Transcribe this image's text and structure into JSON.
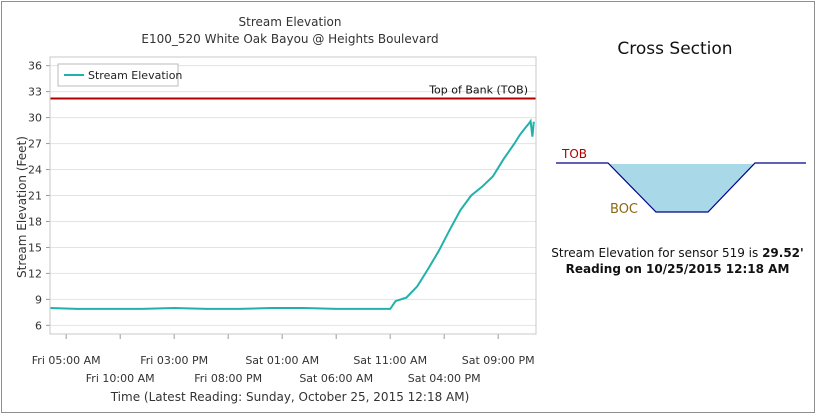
{
  "chart_data": {
    "type": "line",
    "title": "Stream Elevation",
    "subtitle": "E100_520 White Oak Bayou @ Heights Boulevard",
    "ylabel": "Stream Elevation (Feet)",
    "xlabel": "Time (Latest Reading: Sunday, October 25, 2015 12:18 AM)",
    "ylim": [
      5,
      37
    ],
    "yticks": [
      6,
      9,
      12,
      15,
      18,
      21,
      24,
      27,
      30,
      33,
      36
    ],
    "xlim": [
      "2015-10-23T03:30",
      "2015-10-25T00:30"
    ],
    "xtick_labels_top": [
      "Fri 05:00 AM",
      "Fri 03:00 PM",
      "Sat 01:00 AM",
      "Sat 11:00 AM",
      "Sat 09:00 PM"
    ],
    "xtick_labels_bottom": [
      "Fri 10:00 AM",
      "Fri 08:00 PM",
      "Sat 06:00 AM",
      "Sat 04:00 PM"
    ],
    "grid": true,
    "legend": "top-left",
    "series": [
      {
        "name": "Stream Elevation",
        "color": "#20b2aa",
        "x": [
          "2015-10-23T03:30",
          "2015-10-23T06:00",
          "2015-10-23T09:00",
          "2015-10-23T12:00",
          "2015-10-23T15:00",
          "2015-10-23T18:00",
          "2015-10-23T21:00",
          "2015-10-24T00:00",
          "2015-10-24T03:00",
          "2015-10-24T06:00",
          "2015-10-24T08:00",
          "2015-10-24T09:00",
          "2015-10-24T11:00",
          "2015-10-24T11:30",
          "2015-10-24T12:30",
          "2015-10-24T13:30",
          "2015-10-24T14:30",
          "2015-10-24T15:30",
          "2015-10-24T16:30",
          "2015-10-24T17:30",
          "2015-10-24T18:30",
          "2015-10-24T19:30",
          "2015-10-24T20:30",
          "2015-10-24T21:00",
          "2015-10-24T21:30",
          "2015-10-24T22:30",
          "2015-10-24T23:00",
          "2015-10-24T23:30",
          "2015-10-24T23:50",
          "2015-10-25T00:00",
          "2015-10-25T00:10",
          "2015-10-25T00:18"
        ],
        "values": [
          8.0,
          7.9,
          7.9,
          7.9,
          8.0,
          7.9,
          7.9,
          8.0,
          8.0,
          7.9,
          7.9,
          7.9,
          7.9,
          8.8,
          9.2,
          10.5,
          12.5,
          14.6,
          17.0,
          19.3,
          21.0,
          22.0,
          23.2,
          24.2,
          25.2,
          27.0,
          28.0,
          28.8,
          29.3,
          29.6,
          27.8,
          29.52
        ]
      }
    ],
    "reference_lines": [
      {
        "label": "Top of Bank (TOB)",
        "y": 32.2,
        "color": "#b00000"
      }
    ]
  },
  "cross_section": {
    "title": "Cross Section",
    "tob_label": "TOB",
    "boc_label": "BOC",
    "water_color": "#a9d9e8",
    "tob_color": "#b00000",
    "boc_color": "#8b6914",
    "line1_prefix": "Stream Elevation for sensor 519 is ",
    "line1_value": "29.52'",
    "line2": "Reading on 10/25/2015 12:18 AM"
  }
}
